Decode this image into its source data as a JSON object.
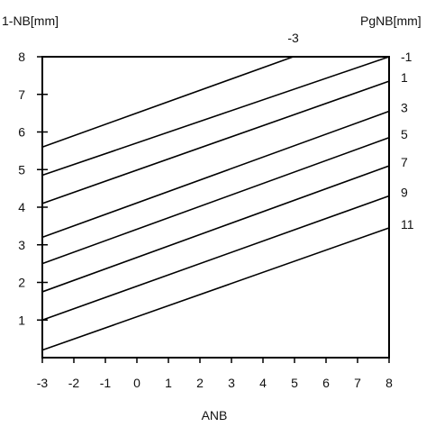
{
  "chart_data": {
    "type": "line",
    "xlabel": "ANB",
    "ylabel_left": "1-NB[mm]",
    "ylabel_right": "PgNB[mm]",
    "xlim": [
      -3,
      8
    ],
    "ylim": [
      0,
      8
    ],
    "x_ticks": [
      "-3",
      "-2",
      "-1",
      "0",
      "1",
      "2",
      "3",
      "4",
      "5",
      "6",
      "7",
      "8"
    ],
    "y_ticks": [
      "1",
      "2",
      "3",
      "4",
      "5",
      "6",
      "7",
      "8"
    ],
    "grid": false,
    "series": [
      {
        "name": "-3",
        "x": [
          -3,
          4.96
        ],
        "y": [
          5.6,
          8.0
        ]
      },
      {
        "name": "-1",
        "x": [
          -3,
          8
        ],
        "y": [
          4.85,
          8.0
        ]
      },
      {
        "name": "1",
        "x": [
          -3,
          8
        ],
        "y": [
          4.1,
          7.35
        ]
      },
      {
        "name": "3",
        "x": [
          -3,
          8
        ],
        "y": [
          3.2,
          6.55
        ]
      },
      {
        "name": "5",
        "x": [
          -3,
          8
        ],
        "y": [
          2.5,
          5.85
        ]
      },
      {
        "name": "7",
        "x": [
          -3,
          8
        ],
        "y": [
          1.75,
          5.1
        ]
      },
      {
        "name": "9",
        "x": [
          -3,
          8
        ],
        "y": [
          1.0,
          4.3
        ]
      },
      {
        "name": "11",
        "x": [
          -3,
          8
        ],
        "y": [
          0.2,
          3.45
        ]
      }
    ]
  }
}
